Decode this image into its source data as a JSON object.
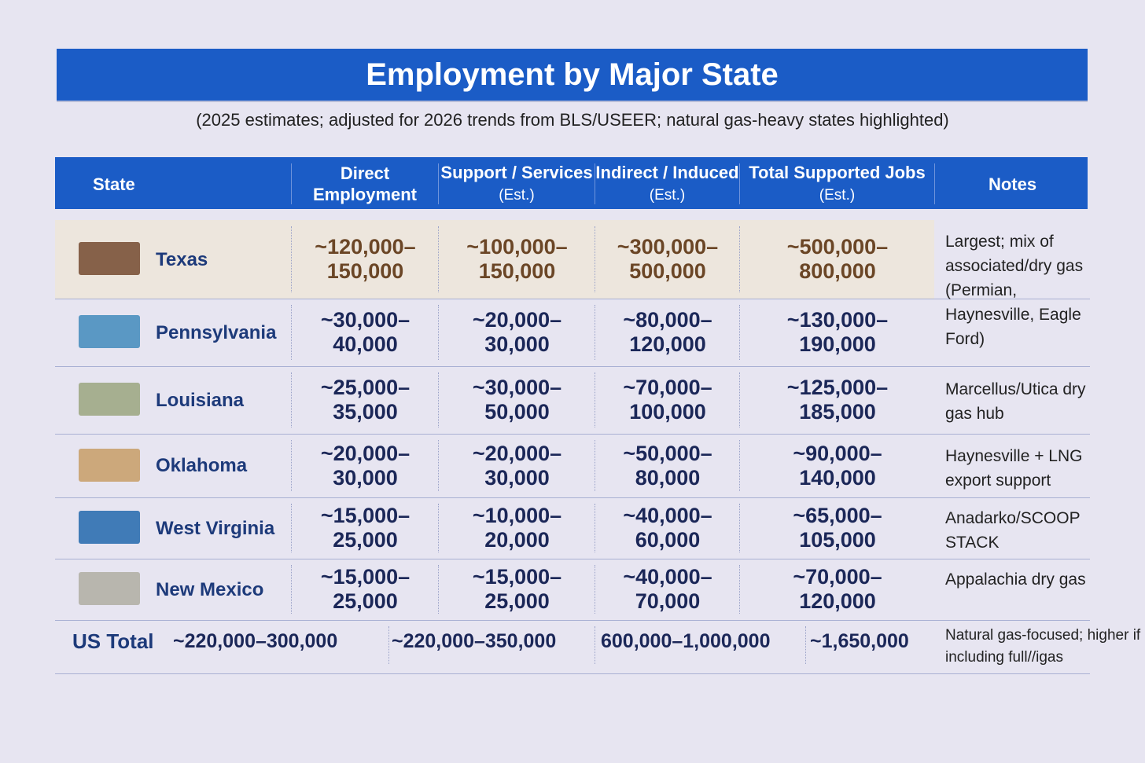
{
  "header": {
    "title": "Employment by Major State",
    "subtitle": "(2025 estimates; adjusted for 2026 trends from BLS/USEER; natural gas-heavy states highlighted)"
  },
  "table": {
    "columns": [
      {
        "text": "State"
      },
      {
        "text": "Direct Employment"
      },
      {
        "text": "Support / Services",
        "est": "(Est.)"
      },
      {
        "text": "Indirect / Induced",
        "est": "(Est.)"
      },
      {
        "text": "Total Supported Jobs",
        "est": "(Est.)"
      },
      {
        "text": "Notes"
      }
    ],
    "rows": [
      [
        "Texas",
        "~120,000–150,000",
        "~100,000–150,000",
        "~300,000–500,000",
        "~500,000–800,000"
      ],
      [
        "Pennsylvania",
        "~30,000–40,000",
        "~20,000–30,000",
        "~80,000–120,000",
        "~130,000–190,000"
      ],
      [
        "Louisiana",
        "~25,000–35,000",
        "~30,000–50,000",
        "~70,000–100,000",
        "~125,000–185,000"
      ],
      [
        "Oklahoma",
        "~20,000–30,000",
        "~20,000–30,000",
        "~50,000–80,000",
        "~90,000–140,000"
      ],
      [
        "West Virginia",
        "~15,000–25,000",
        "~10,000–20,000",
        "~40,000–60,000",
        "~65,000–105,000"
      ],
      [
        "New Mexico",
        "~15,000–25,000",
        "~15,000–25,000",
        "~40,000–70,000",
        "~70,000–120,000"
      ]
    ],
    "notes": [
      "Largest; mix of associated/dry gas (Permian, Haynesville, Eagle Ford)",
      "Marcellus/Utica dry gas hub",
      "Haynesville + LNG export support",
      "Anadarko/SCOOP STACK",
      "Appalachia dry gas"
    ],
    "total": [
      "US Total",
      "~220,000–300,000",
      "~220,000–350,000",
      "600,000–1,000,000",
      "~1,650,000",
      "Natural gas-focused; higher if including full//igas"
    ]
  }
}
